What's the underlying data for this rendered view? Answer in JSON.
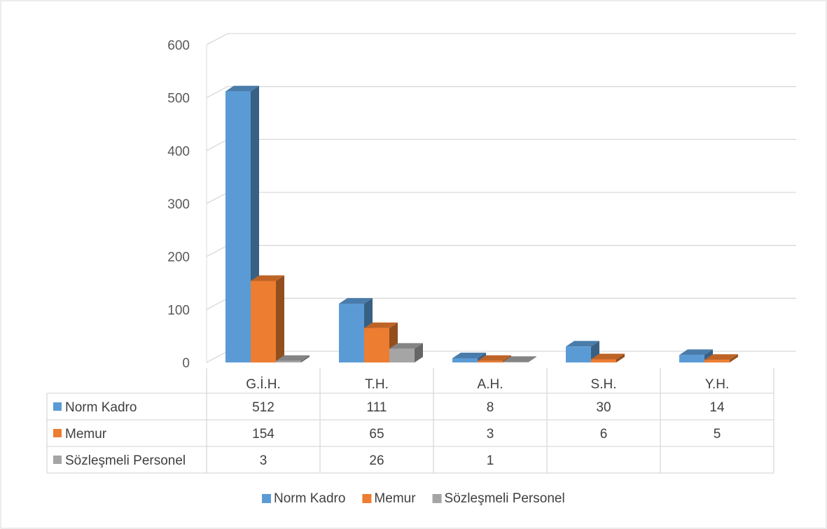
{
  "chart_data": {
    "type": "bar",
    "title": "",
    "xlabel": "",
    "ylabel": "",
    "ylim": [
      0,
      600
    ],
    "yticks": [
      0,
      100,
      200,
      300,
      400,
      500,
      600
    ],
    "categories": [
      "G.İ.H.",
      "T.H.",
      "A.H.",
      "S.H.",
      "Y.H."
    ],
    "series": [
      {
        "name": "Norm Kadro",
        "color": "#5b9bd5",
        "values": [
          512,
          111,
          8,
          30,
          14
        ]
      },
      {
        "name": "Memur",
        "color": "#ed7d31",
        "values": [
          154,
          65,
          3,
          6,
          5
        ]
      },
      {
        "name": "Sözleşmeli Personel",
        "color": "#a5a5a5",
        "values": [
          3,
          26,
          1,
          null,
          null
        ]
      }
    ],
    "grid": true,
    "data_table": true,
    "legend_position": "bottom",
    "style": "3d-clustered-column"
  }
}
